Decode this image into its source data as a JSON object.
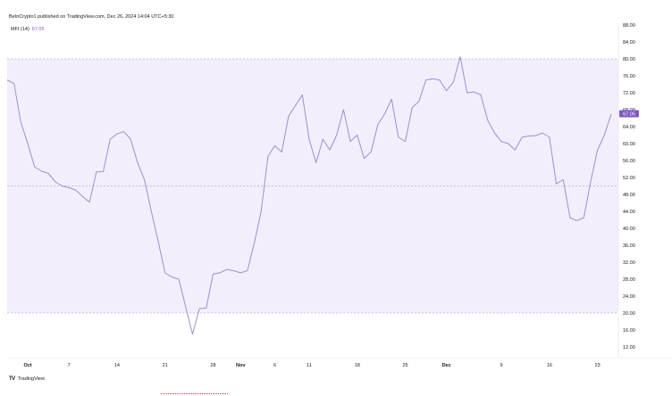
{
  "header": {
    "published": "BeInCrypto1 published on TradingView.com, Dec 26, 2024 14:04 UTC+5:30"
  },
  "indicator": {
    "name": "MFI (14)",
    "value": "67.05"
  },
  "footer": {
    "logo": "TV",
    "brand": "TradingView"
  },
  "colors": {
    "line": "#9c8fd6",
    "band": "#f3eefb",
    "badge": "#7e57c2",
    "dashed": "#9598a1"
  },
  "chart_data": {
    "type": "line",
    "ylim": [
      10,
      88
    ],
    "yticks": [
      "88.00",
      "84.00",
      "80.00",
      "76.00",
      "72.00",
      "68.00",
      "64.00",
      "60.00",
      "56.00",
      "52.00",
      "48.00",
      "44.00",
      "40.00",
      "36.00",
      "32.00",
      "28.00",
      "24.00",
      "20.00",
      "16.00",
      "12.00"
    ],
    "band": [
      20,
      80
    ],
    "midline": 50,
    "last_value_label": "67.05",
    "xticks": [
      {
        "label": "Oct",
        "index": 3,
        "bold": true
      },
      {
        "label": "7",
        "index": 9,
        "bold": false
      },
      {
        "label": "14",
        "index": 16,
        "bold": false
      },
      {
        "label": "21",
        "index": 23,
        "bold": false
      },
      {
        "label": "28",
        "index": 30,
        "bold": false
      },
      {
        "label": "Nov",
        "index": 34,
        "bold": true
      },
      {
        "label": "6",
        "index": 39,
        "bold": false
      },
      {
        "label": "11",
        "index": 44,
        "bold": false
      },
      {
        "label": "18",
        "index": 51,
        "bold": false
      },
      {
        "label": "25",
        "index": 58,
        "bold": false
      },
      {
        "label": "Dec",
        "index": 64,
        "bold": true
      },
      {
        "label": "9",
        "index": 72,
        "bold": false
      },
      {
        "label": "16",
        "index": 79,
        "bold": false
      },
      {
        "label": "23",
        "index": 86,
        "bold": false
      }
    ],
    "values": [
      75.0,
      74.2,
      65.0,
      60.0,
      54.5,
      53.5,
      53.0,
      51.0,
      50.0,
      49.6,
      49.0,
      47.5,
      46.2,
      53.3,
      53.4,
      61.0,
      62.3,
      62.8,
      61.0,
      55.5,
      51.5,
      44.0,
      37.0,
      29.5,
      28.5,
      28.0,
      21.5,
      15.0,
      21.0,
      21.2,
      29.2,
      29.5,
      30.3,
      30.0,
      29.5,
      30.0,
      36.5,
      44.0,
      57.0,
      59.5,
      58.0,
      66.5,
      69.0,
      71.5,
      61.0,
      55.5,
      61.0,
      58.5,
      62.0,
      68.0,
      60.5,
      62.0,
      56.5,
      58.0,
      64.5,
      67.0,
      70.5,
      61.5,
      60.5,
      68.5,
      70.0,
      75.0,
      75.3,
      75.0,
      72.5,
      74.5,
      80.5,
      72.0,
      72.2,
      71.5,
      65.5,
      62.5,
      60.5,
      60.0,
      58.5,
      61.5,
      61.8,
      61.9,
      62.5,
      61.5,
      50.5,
      51.5,
      42.5,
      41.8,
      42.5,
      51.0,
      58.5,
      62.0,
      67.0
    ]
  }
}
